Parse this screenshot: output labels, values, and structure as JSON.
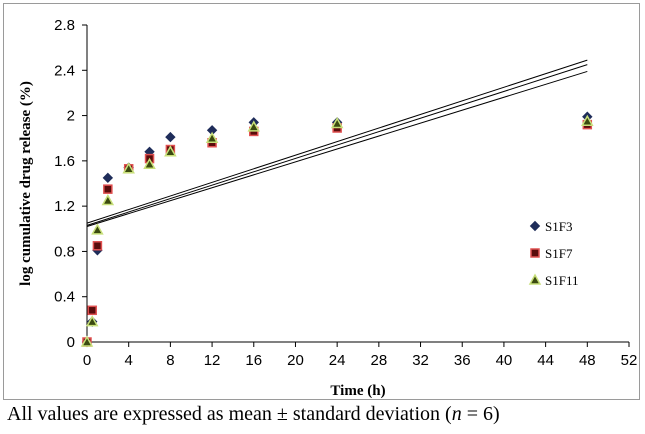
{
  "chart_data": {
    "type": "scatter",
    "title": "",
    "xlabel": "Time (h)",
    "ylabel": "log cumulative drug release (%)",
    "xlim": [
      0,
      52
    ],
    "ylim": [
      0,
      2.8
    ],
    "x_ticks": [
      "0",
      "4",
      "8",
      "12",
      "16",
      "20",
      "24",
      "28",
      "32",
      "36",
      "40",
      "44",
      "48",
      "52"
    ],
    "y_ticks": [
      "0",
      "0.4",
      "0.8",
      "1.2",
      "1.6",
      "2",
      "2.4",
      "2.8"
    ],
    "x": [
      0,
      0.5,
      1,
      2,
      4,
      6,
      8,
      12,
      16,
      24,
      48
    ],
    "series": [
      {
        "name": "S1F3",
        "marker": "diamond",
        "color": "#1f2d5a",
        "values": [
          0,
          0.18,
          0.81,
          1.45,
          1.54,
          1.68,
          1.81,
          1.87,
          1.94,
          1.94,
          1.99
        ]
      },
      {
        "name": "S1F7",
        "marker": "square",
        "color": "#5a0c0c",
        "edge": "#e05050",
        "values": [
          0,
          0.28,
          0.85,
          1.35,
          1.53,
          1.62,
          1.7,
          1.76,
          1.86,
          1.89,
          1.92
        ]
      },
      {
        "name": "S1F11",
        "marker": "triangle",
        "color": "#3b4a10",
        "edge": "#c8e07a",
        "values": [
          0,
          0.18,
          0.99,
          1.25,
          1.53,
          1.57,
          1.68,
          1.8,
          1.9,
          1.93,
          1.95
        ]
      }
    ],
    "trendlines": [
      {
        "series": "S1F3",
        "x": [
          0,
          48
        ],
        "y": [
          1.05,
          2.49
        ]
      },
      {
        "series": "S1F7",
        "x": [
          0,
          48
        ],
        "y": [
          1.03,
          2.45
        ]
      },
      {
        "series": "S1F11",
        "x": [
          0,
          48
        ],
        "y": [
          1.02,
          2.39
        ]
      }
    ],
    "grid": false,
    "legend_position": "right"
  },
  "caption": {
    "prefix": "All values are expressed as mean ± standard deviation (",
    "italic": "n",
    "suffix": " = 6)"
  }
}
